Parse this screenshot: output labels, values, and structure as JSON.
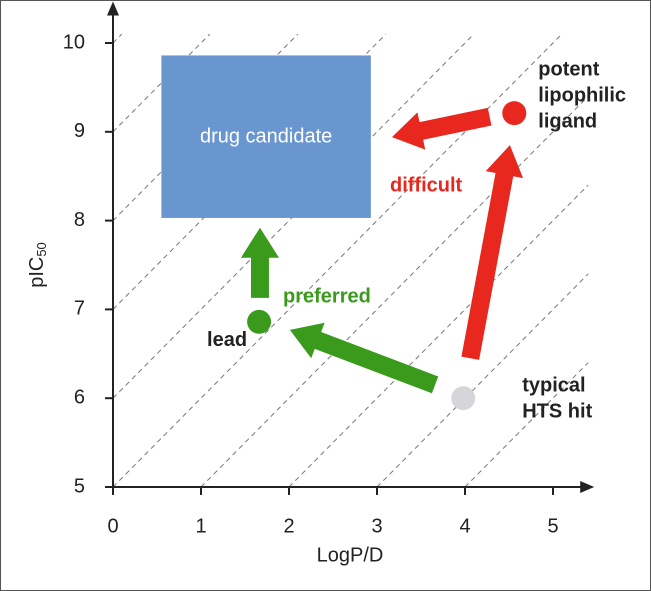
{
  "chart_data": {
    "type": "scatter",
    "xlabel": "LogP/D",
    "ylabel": "pIC",
    "ylabel_subscript": "50",
    "xlim": [
      0,
      5.4
    ],
    "ylim": [
      5,
      10.4
    ],
    "xticks": [
      0,
      1,
      2,
      3,
      4,
      5
    ],
    "yticks": [
      5,
      6,
      7,
      8,
      9,
      10
    ],
    "diagonal_intercepts": [
      1,
      2,
      3,
      4,
      5,
      6,
      7,
      8,
      9,
      10
    ],
    "region": {
      "label": "drug candidate",
      "x": [
        0.55,
        2.93
      ],
      "y": [
        8.03,
        9.86
      ],
      "color": "#6a96d0"
    },
    "points": [
      {
        "x": 1.66,
        "y": 6.86,
        "color": "#3a9a1c",
        "label": [
          "lead"
        ]
      },
      {
        "x": 3.98,
        "y": 6.0,
        "color": "#d4d6d9",
        "label": [
          "typical",
          "HTS hit"
        ]
      },
      {
        "x": 4.56,
        "y": 9.21,
        "color": "#e8281e",
        "label": [
          "potent",
          "lipophilic",
          "ligand"
        ]
      }
    ],
    "arrows": [
      {
        "from": {
          "x": 3.66,
          "y": 6.15
        },
        "to": {
          "x": 2.01,
          "y": 6.77
        },
        "color": "#3a9a1c"
      },
      {
        "from": {
          "x": 1.67,
          "y": 7.13
        },
        "to": {
          "x": 1.67,
          "y": 7.92
        },
        "color": "#3a9a1c"
      },
      {
        "from": {
          "x": 4.06,
          "y": 6.45
        },
        "to": {
          "x": 4.51,
          "y": 8.85
        },
        "color": "#e8281e"
      },
      {
        "from": {
          "x": 4.28,
          "y": 9.17
        },
        "to": {
          "x": 3.17,
          "y": 8.94
        },
        "color": "#e8281e"
      }
    ],
    "annotations": [
      {
        "text": "preferred",
        "color": "#3a9a1c"
      },
      {
        "text": "difficult",
        "color": "#e8281e"
      }
    ]
  }
}
